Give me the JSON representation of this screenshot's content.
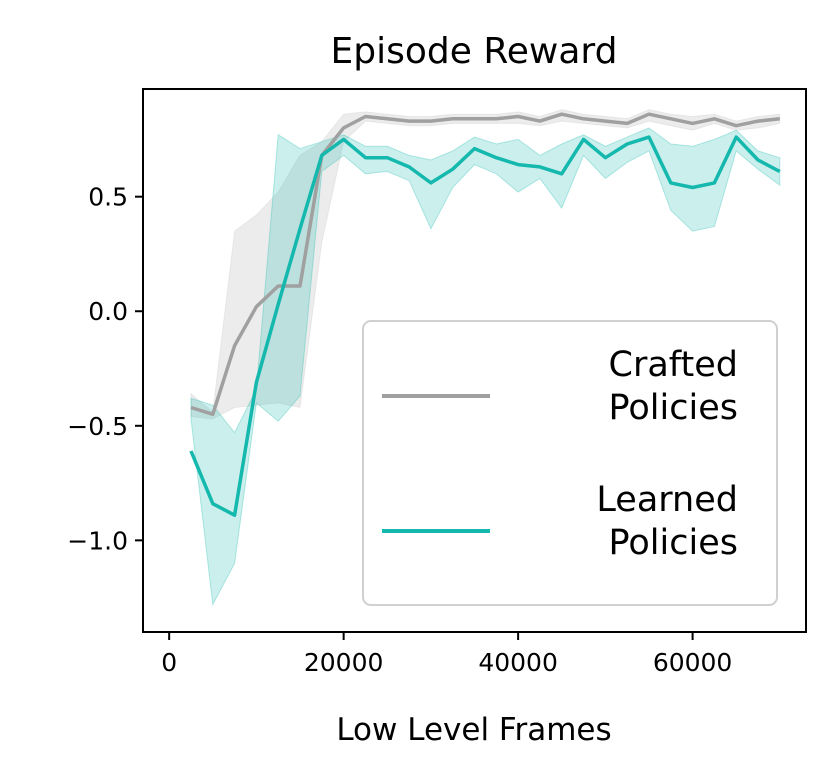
{
  "chart_data": {
    "type": "line",
    "title": "Episode Reward",
    "xlabel": "Low Level Frames",
    "ylabel": "",
    "xlim": [
      -3000,
      73000
    ],
    "ylim": [
      -1.4,
      0.97
    ],
    "xticks": [
      0,
      20000,
      40000,
      60000
    ],
    "xtick_labels": [
      "0",
      "20000",
      "40000",
      "60000"
    ],
    "yticks": [
      0.5,
      0.0,
      -0.5,
      -1.0
    ],
    "ytick_labels": [
      "0.5",
      "0.0",
      "−0.5",
      "−1.0"
    ],
    "grid": false,
    "legend_position": "lower-right",
    "series": [
      {
        "name": "Crafted\n Policies",
        "color": "#a0a0a0",
        "band_color": "#c8c8c8",
        "x": [
          2500,
          5000,
          7500,
          10000,
          12500,
          15000,
          17500,
          20000,
          22500,
          25000,
          27500,
          30000,
          32500,
          35000,
          37500,
          40000,
          42500,
          45000,
          47500,
          50000,
          52500,
          55000,
          57500,
          60000,
          62500,
          65000,
          67500,
          70000
        ],
        "y": [
          -0.42,
          -0.45,
          -0.15,
          0.02,
          0.11,
          0.11,
          0.68,
          0.8,
          0.85,
          0.84,
          0.83,
          0.83,
          0.84,
          0.84,
          0.84,
          0.85,
          0.83,
          0.86,
          0.84,
          0.83,
          0.82,
          0.86,
          0.84,
          0.82,
          0.84,
          0.81,
          0.83,
          0.84
        ],
        "lower": [
          -0.46,
          -0.47,
          -0.42,
          -0.41,
          -0.4,
          -0.42,
          0.3,
          0.74,
          0.83,
          0.82,
          0.81,
          0.81,
          0.82,
          0.82,
          0.82,
          0.82,
          0.81,
          0.83,
          0.82,
          0.81,
          0.8,
          0.83,
          0.81,
          0.79,
          0.82,
          0.79,
          0.8,
          0.82
        ],
        "upper": [
          -0.36,
          -0.44,
          0.35,
          0.42,
          0.52,
          0.68,
          0.74,
          0.86,
          0.87,
          0.86,
          0.85,
          0.85,
          0.86,
          0.86,
          0.86,
          0.87,
          0.85,
          0.88,
          0.86,
          0.85,
          0.84,
          0.88,
          0.86,
          0.85,
          0.86,
          0.83,
          0.85,
          0.86
        ]
      },
      {
        "name": "Learned\n Policies",
        "color": "#14b8ad",
        "band_color": "#14b8ad",
        "x": [
          2500,
          5000,
          7500,
          10000,
          12500,
          15000,
          17500,
          20000,
          22500,
          25000,
          27500,
          30000,
          32500,
          35000,
          37500,
          40000,
          42500,
          45000,
          47500,
          50000,
          52500,
          55000,
          57500,
          60000,
          62500,
          65000,
          67500,
          70000
        ],
        "y": [
          -0.61,
          -0.84,
          -0.89,
          -0.31,
          0.03,
          0.36,
          0.68,
          0.75,
          0.67,
          0.67,
          0.63,
          0.56,
          0.62,
          0.71,
          0.67,
          0.64,
          0.63,
          0.6,
          0.75,
          0.67,
          0.73,
          0.76,
          0.56,
          0.54,
          0.56,
          0.76,
          0.66,
          0.61
        ],
        "lower": [
          -0.47,
          -1.28,
          -1.1,
          -0.4,
          -0.48,
          -0.37,
          0.61,
          0.68,
          0.6,
          0.61,
          0.57,
          0.36,
          0.54,
          0.64,
          0.6,
          0.52,
          0.58,
          0.45,
          0.68,
          0.58,
          0.65,
          0.7,
          0.44,
          0.35,
          0.37,
          0.7,
          0.62,
          0.55
        ],
        "upper": [
          -0.38,
          -0.41,
          -0.53,
          -0.34,
          0.77,
          0.71,
          0.74,
          0.77,
          0.72,
          0.72,
          0.68,
          0.66,
          0.7,
          0.76,
          0.73,
          0.75,
          0.68,
          0.73,
          0.77,
          0.72,
          0.76,
          0.8,
          0.73,
          0.72,
          0.75,
          0.79,
          0.7,
          0.67
        ]
      }
    ]
  }
}
